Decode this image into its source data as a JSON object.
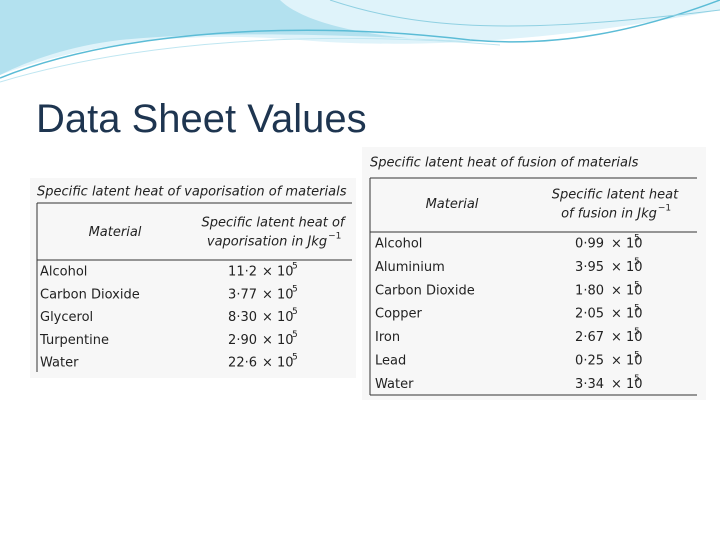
{
  "title": "Data Sheet Values",
  "tables": [
    {
      "caption": "Specific latent heat of vaporisation of materials",
      "header": {
        "material": "Material",
        "value_line1": "Specific latent heat of",
        "value_line2": "vaporisation in Jkg",
        "value_sup": "−1"
      },
      "rows": [
        [
          "Alcohol",
          "11·2",
          "× 10",
          "5"
        ],
        [
          "Carbon Dioxide",
          "3·77",
          "× 10",
          "5"
        ],
        [
          "Glycerol",
          "8·30",
          "× 10",
          "5"
        ],
        [
          "Turpentine",
          "2·90",
          "× 10",
          "5"
        ],
        [
          "Water",
          "22·6",
          "× 10",
          "5"
        ]
      ]
    },
    {
      "caption": "Specific latent heat of fusion of materials",
      "header": {
        "material": "Material",
        "value_line1": "Specific latent heat",
        "value_line2": "of fusion in Jkg",
        "value_sup": "−1"
      },
      "rows": [
        [
          "Alcohol",
          "0·99",
          "× 10",
          "5"
        ],
        [
          "Aluminium",
          "3·95",
          "× 10",
          "5"
        ],
        [
          "Carbon Dioxide",
          "1·80",
          "× 10",
          "5"
        ],
        [
          "Copper",
          "2·05",
          "× 10",
          "5"
        ],
        [
          "Iron",
          "2·67",
          "× 10",
          "5"
        ],
        [
          "Lead",
          "0·25",
          "× 10",
          "5"
        ],
        [
          "Water",
          "3·34",
          "× 10",
          "5"
        ]
      ]
    }
  ]
}
